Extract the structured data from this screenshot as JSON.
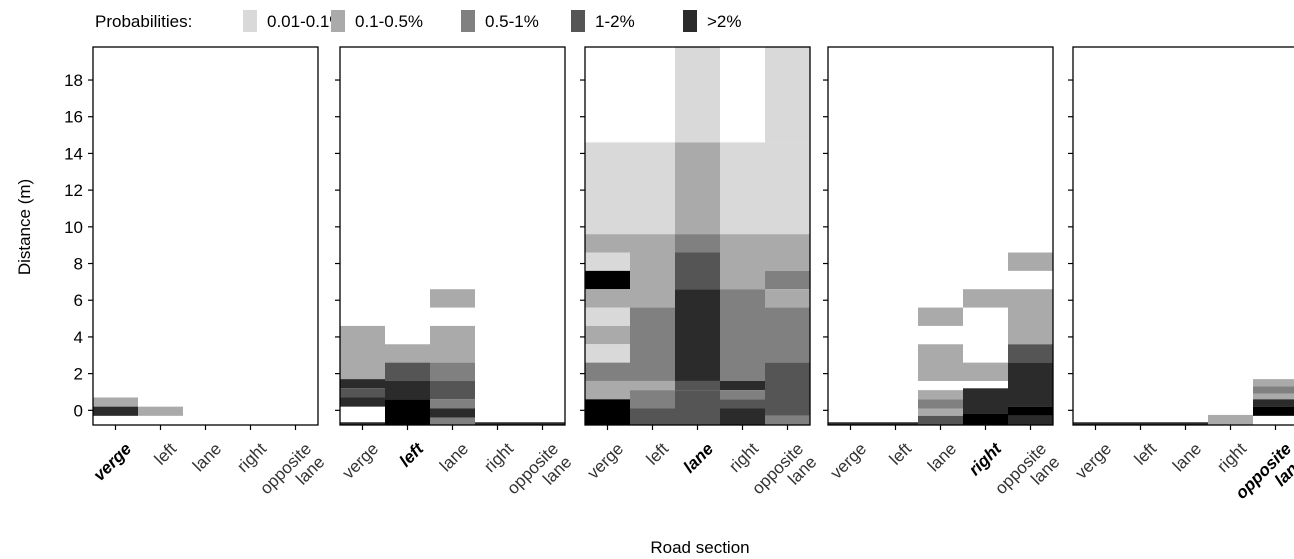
{
  "chart_data": {
    "type": "heatmap",
    "legend": {
      "title": "Probabilities:",
      "placement": "top",
      "classes": [
        {
          "label": "0.01-0.1%",
          "color": "#d9d9d9"
        },
        {
          "label": "0.1-0.5%",
          "color": "#aaaaaa"
        },
        {
          "label": "0.5-1%",
          "color": "#808080"
        },
        {
          "label": "1-2%",
          "color": "#555555"
        },
        {
          "label": ">2%",
          "color": "#2b2b2b"
        },
        {
          "label": "",
          "color": "#000000"
        }
      ]
    },
    "ylabel": "Distance (m)",
    "xlabel": "Road section",
    "ylim": [
      -0.8,
      19.8
    ],
    "yticks": [
      "0",
      "2",
      "4",
      "6",
      "8",
      "10",
      "12",
      "14",
      "16",
      "18"
    ],
    "xcategories": [
      "verge",
      "left",
      "lane",
      "right",
      "opposite lane"
    ],
    "panels": [
      {
        "highlight": 0,
        "tick_labels": [
          {
            "text": "verge",
            "bold": true
          },
          {
            "text": "left"
          },
          {
            "text": "lane"
          },
          {
            "text": "right"
          },
          {
            "text": "opposite",
            "text2": "lane"
          }
        ],
        "cells": [
          {
            "col": 0,
            "y0": 0.2,
            "y1": 0.7,
            "c": 1
          },
          {
            "col": 0,
            "y0": -0.3,
            "y1": 0.2,
            "c": 4
          },
          {
            "col": 1,
            "y0": -0.3,
            "y1": 0.2,
            "c": 1
          }
        ]
      },
      {
        "highlight": 1,
        "tick_labels": [
          {
            "text": "verge"
          },
          {
            "text": "left",
            "bold": true
          },
          {
            "text": "lane"
          },
          {
            "text": "right"
          },
          {
            "text": "opposite",
            "text2": "lane"
          }
        ],
        "cells": [
          {
            "col": 0,
            "y0": 1.7,
            "y1": 4.6,
            "c": 1
          },
          {
            "col": 0,
            "y0": 1.2,
            "y1": 1.7,
            "c": 4
          },
          {
            "col": 0,
            "y0": 0.7,
            "y1": 1.2,
            "c": 3
          },
          {
            "col": 0,
            "y0": 0.2,
            "y1": 0.7,
            "c": 4
          },
          {
            "col": 0,
            "y0": -0.8,
            "y1": -0.65,
            "c": 4
          },
          {
            "col": 1,
            "y0": 2.6,
            "y1": 3.6,
            "c": 1
          },
          {
            "col": 1,
            "y0": 1.6,
            "y1": 2.6,
            "c": 3
          },
          {
            "col": 1,
            "y0": 0.6,
            "y1": 1.6,
            "c": 4
          },
          {
            "col": 1,
            "y0": -0.8,
            "y1": 0.6,
            "c": 5
          },
          {
            "col": 2,
            "y0": 5.6,
            "y1": 6.6,
            "c": 1
          },
          {
            "col": 2,
            "y0": 2.6,
            "y1": 4.6,
            "c": 1
          },
          {
            "col": 2,
            "y0": 1.6,
            "y1": 2.6,
            "c": 2
          },
          {
            "col": 2,
            "y0": 0.6,
            "y1": 1.6,
            "c": 3
          },
          {
            "col": 2,
            "y0": 0.1,
            "y1": 0.6,
            "c": 2
          },
          {
            "col": 2,
            "y0": -0.4,
            "y1": 0.1,
            "c": 4
          },
          {
            "col": 2,
            "y0": -0.8,
            "y1": -0.4,
            "c": 2
          },
          {
            "col": 3,
            "y0": -0.8,
            "y1": -0.65,
            "c": 4
          },
          {
            "col": 4,
            "y0": -0.8,
            "y1": -0.65,
            "c": 4
          }
        ]
      },
      {
        "highlight": 2,
        "tick_labels": [
          {
            "text": "verge"
          },
          {
            "text": "left"
          },
          {
            "text": "lane",
            "bold": true
          },
          {
            "text": "right"
          },
          {
            "text": "opposite",
            "text2": "lane"
          }
        ],
        "cells": [
          {
            "col": 0,
            "y0": 9.6,
            "y1": 14.6,
            "c": 0
          },
          {
            "col": 0,
            "y0": 8.6,
            "y1": 9.6,
            "c": 1
          },
          {
            "col": 0,
            "y0": 7.6,
            "y1": 8.6,
            "c": 0
          },
          {
            "col": 0,
            "y0": 6.6,
            "y1": 7.6,
            "c": 6
          },
          {
            "col": 0,
            "y0": 5.6,
            "y1": 6.6,
            "c": 1
          },
          {
            "col": 0,
            "y0": 4.6,
            "y1": 5.6,
            "c": 0
          },
          {
            "col": 0,
            "y0": 3.6,
            "y1": 4.6,
            "c": 1
          },
          {
            "col": 0,
            "y0": 2.6,
            "y1": 3.6,
            "c": 0
          },
          {
            "col": 0,
            "y0": 1.6,
            "y1": 2.6,
            "c": 2
          },
          {
            "col": 0,
            "y0": 0.6,
            "y1": 1.6,
            "c": 1
          },
          {
            "col": 0,
            "y0": -0.8,
            "y1": 0.6,
            "c": 6
          },
          {
            "col": 1,
            "y0": 9.6,
            "y1": 14.6,
            "c": 0
          },
          {
            "col": 1,
            "y0": 5.6,
            "y1": 9.6,
            "c": 1
          },
          {
            "col": 1,
            "y0": 1.6,
            "y1": 5.6,
            "c": 2
          },
          {
            "col": 1,
            "y0": 1.1,
            "y1": 1.6,
            "c": 1
          },
          {
            "col": 1,
            "y0": 0.1,
            "y1": 1.1,
            "c": 2
          },
          {
            "col": 1,
            "y0": -0.8,
            "y1": 0.1,
            "c": 3
          },
          {
            "col": 2,
            "y0": 14.6,
            "y1": 19.8,
            "c": 0
          },
          {
            "col": 2,
            "y0": 9.6,
            "y1": 14.6,
            "c": 1
          },
          {
            "col": 2,
            "y0": 8.6,
            "y1": 9.6,
            "c": 2
          },
          {
            "col": 2,
            "y0": 6.6,
            "y1": 8.6,
            "c": 3
          },
          {
            "col": 2,
            "y0": 1.6,
            "y1": 6.6,
            "c": 4
          },
          {
            "col": 2,
            "y0": 1.1,
            "y1": 1.6,
            "c": 3
          },
          {
            "col": 2,
            "y0": -0.8,
            "y1": 1.1,
            "c": 3
          },
          {
            "col": 3,
            "y0": 9.6,
            "y1": 14.6,
            "c": 0
          },
          {
            "col": 3,
            "y0": 6.6,
            "y1": 9.6,
            "c": 1
          },
          {
            "col": 3,
            "y0": 1.6,
            "y1": 6.6,
            "c": 2
          },
          {
            "col": 3,
            "y0": 1.1,
            "y1": 1.6,
            "c": 4
          },
          {
            "col": 3,
            "y0": 0.6,
            "y1": 1.1,
            "c": 2
          },
          {
            "col": 3,
            "y0": 0.1,
            "y1": 0.6,
            "c": 3
          },
          {
            "col": 3,
            "y0": -0.8,
            "y1": 0.1,
            "c": 4
          },
          {
            "col": 4,
            "y0": 14.6,
            "y1": 19.8,
            "c": 0
          },
          {
            "col": 4,
            "y0": 9.6,
            "y1": 14.6,
            "c": 0
          },
          {
            "col": 4,
            "y0": 7.6,
            "y1": 9.6,
            "c": 1
          },
          {
            "col": 4,
            "y0": 6.6,
            "y1": 7.6,
            "c": 2
          },
          {
            "col": 4,
            "y0": 5.6,
            "y1": 6.6,
            "c": 1
          },
          {
            "col": 4,
            "y0": 2.6,
            "y1": 5.6,
            "c": 2
          },
          {
            "col": 4,
            "y0": -0.3,
            "y1": 2.6,
            "c": 3
          },
          {
            "col": 4,
            "y0": -0.8,
            "y1": -0.3,
            "c": 2
          }
        ]
      },
      {
        "highlight": 3,
        "tick_labels": [
          {
            "text": "verge"
          },
          {
            "text": "left"
          },
          {
            "text": "lane"
          },
          {
            "text": "right",
            "bold": true
          },
          {
            "text": "opposite",
            "text2": "lane"
          }
        ],
        "cells": [
          {
            "col": 0,
            "y0": -0.8,
            "y1": -0.65,
            "c": 4
          },
          {
            "col": 1,
            "y0": -0.8,
            "y1": -0.65,
            "c": 4
          },
          {
            "col": 2,
            "y0": 4.6,
            "y1": 5.6,
            "c": 1
          },
          {
            "col": 2,
            "y0": 1.6,
            "y1": 3.6,
            "c": 1
          },
          {
            "col": 2,
            "y0": 0.6,
            "y1": 1.1,
            "c": 1
          },
          {
            "col": 2,
            "y0": 0.1,
            "y1": 0.6,
            "c": 2
          },
          {
            "col": 2,
            "y0": -0.3,
            "y1": 0.1,
            "c": 1
          },
          {
            "col": 2,
            "y0": -0.8,
            "y1": -0.3,
            "c": 3
          },
          {
            "col": 3,
            "y0": 5.6,
            "y1": 6.6,
            "c": 1
          },
          {
            "col": 3,
            "y0": 1.6,
            "y1": 2.6,
            "c": 1
          },
          {
            "col": 3,
            "y0": -0.2,
            "y1": 1.2,
            "c": 4
          },
          {
            "col": 3,
            "y0": -0.8,
            "y1": -0.2,
            "c": 5
          },
          {
            "col": 4,
            "y0": 7.6,
            "y1": 8.6,
            "c": 1
          },
          {
            "col": 4,
            "y0": 3.6,
            "y1": 6.6,
            "c": 1
          },
          {
            "col": 4,
            "y0": 2.6,
            "y1": 3.6,
            "c": 3
          },
          {
            "col": 4,
            "y0": 0.2,
            "y1": 2.6,
            "c": 4
          },
          {
            "col": 4,
            "y0": -0.3,
            "y1": 0.2,
            "c": 5
          },
          {
            "col": 4,
            "y0": -0.8,
            "y1": -0.3,
            "c": 4
          }
        ]
      },
      {
        "highlight": 4,
        "tick_labels": [
          {
            "text": "verge"
          },
          {
            "text": "left"
          },
          {
            "text": "lane"
          },
          {
            "text": "right"
          },
          {
            "text": "opposite",
            "text2": "lane",
            "bold": true
          }
        ],
        "cells": [
          {
            "col": 0,
            "y0": -0.8,
            "y1": -0.65,
            "c": 4
          },
          {
            "col": 1,
            "y0": -0.8,
            "y1": -0.65,
            "c": 4
          },
          {
            "col": 2,
            "y0": -0.8,
            "y1": -0.65,
            "c": 4
          },
          {
            "col": 3,
            "y0": -0.8,
            "y1": -0.25,
            "c": 1
          },
          {
            "col": 4,
            "y0": 1.3,
            "y1": 1.7,
            "c": 1
          },
          {
            "col": 4,
            "y0": 0.9,
            "y1": 1.3,
            "c": 2
          },
          {
            "col": 4,
            "y0": 0.6,
            "y1": 0.9,
            "c": 1
          },
          {
            "col": 4,
            "y0": 0.2,
            "y1": 0.6,
            "c": 4
          },
          {
            "col": 4,
            "y0": -0.3,
            "y1": 0.2,
            "c": 5
          }
        ]
      }
    ]
  }
}
